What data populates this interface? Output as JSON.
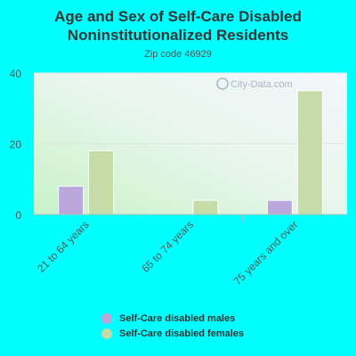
{
  "chart_data": {
    "type": "bar",
    "title": "Age and Sex of Self-Care Disabled Noninstitutionalized Residents",
    "title_lines": [
      "Age and Sex of Self-Care Disabled",
      "Noninstitutionalized Residents"
    ],
    "subtitle": "Zip code 46929",
    "watermark": "City-Data.com",
    "categories": [
      "21 to 64 years",
      "65 to 74 years",
      "75 years and over"
    ],
    "series": [
      {
        "name": "Self-Care disabled males",
        "color": "#bba7dc",
        "values": [
          8,
          0,
          4
        ]
      },
      {
        "name": "Self-Care disabled females",
        "color": "#c5dba8",
        "values": [
          18,
          4,
          35
        ]
      }
    ],
    "ylim": [
      0,
      40
    ],
    "yticks": [
      0,
      20,
      40
    ],
    "grid": true,
    "legend_position": "bottom"
  }
}
